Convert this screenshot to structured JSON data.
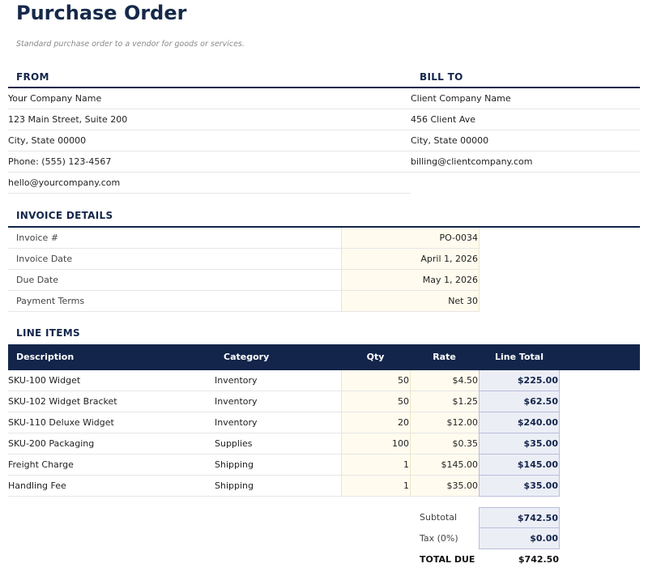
{
  "header": {
    "title": "Purchase Order",
    "subtitle": "Standard purchase order to a vendor for goods or services."
  },
  "from": {
    "heading": "FROM",
    "lines": [
      "Your Company Name",
      "123 Main Street, Suite 200",
      "City, State 00000",
      "Phone: (555) 123-4567",
      "hello@yourcompany.com"
    ]
  },
  "bill_to": {
    "heading": "BILL TO",
    "lines": [
      "Client Company Name",
      "456 Client Ave",
      "City, State 00000",
      "billing@clientcompany.com"
    ]
  },
  "invoice_details": {
    "heading": "INVOICE DETAILS",
    "rows": [
      [
        "Invoice #",
        "PO-0034"
      ],
      [
        "Invoice Date",
        "April 1, 2026"
      ],
      [
        "Due Date",
        "May 1, 2026"
      ],
      [
        "Payment Terms",
        "Net 30"
      ]
    ]
  },
  "line_items": {
    "heading": "LINE ITEMS",
    "columns": [
      "Description",
      "Category",
      "Qty",
      "Rate",
      "Line Total"
    ],
    "rows": [
      [
        "SKU-100 Widget",
        "Inventory",
        "50",
        "$4.50",
        "$225.00"
      ],
      [
        "SKU-102 Widget Bracket",
        "Inventory",
        "50",
        "$1.25",
        "$62.50"
      ],
      [
        "SKU-110 Deluxe Widget",
        "Inventory",
        "20",
        "$12.00",
        "$240.00"
      ],
      [
        "SKU-200 Packaging",
        "Supplies",
        "100",
        "$0.35",
        "$35.00"
      ],
      [
        "Freight Charge",
        "Shipping",
        "1",
        "$145.00",
        "$145.00"
      ],
      [
        "Handling Fee",
        "Shipping",
        "1",
        "$35.00",
        "$35.00"
      ]
    ]
  },
  "totals": {
    "rows": [
      [
        "Subtotal",
        "$742.50"
      ],
      [
        "Tax (0%)",
        "$0.00"
      ],
      [
        "TOTAL DUE",
        "$742.50"
      ]
    ]
  }
}
